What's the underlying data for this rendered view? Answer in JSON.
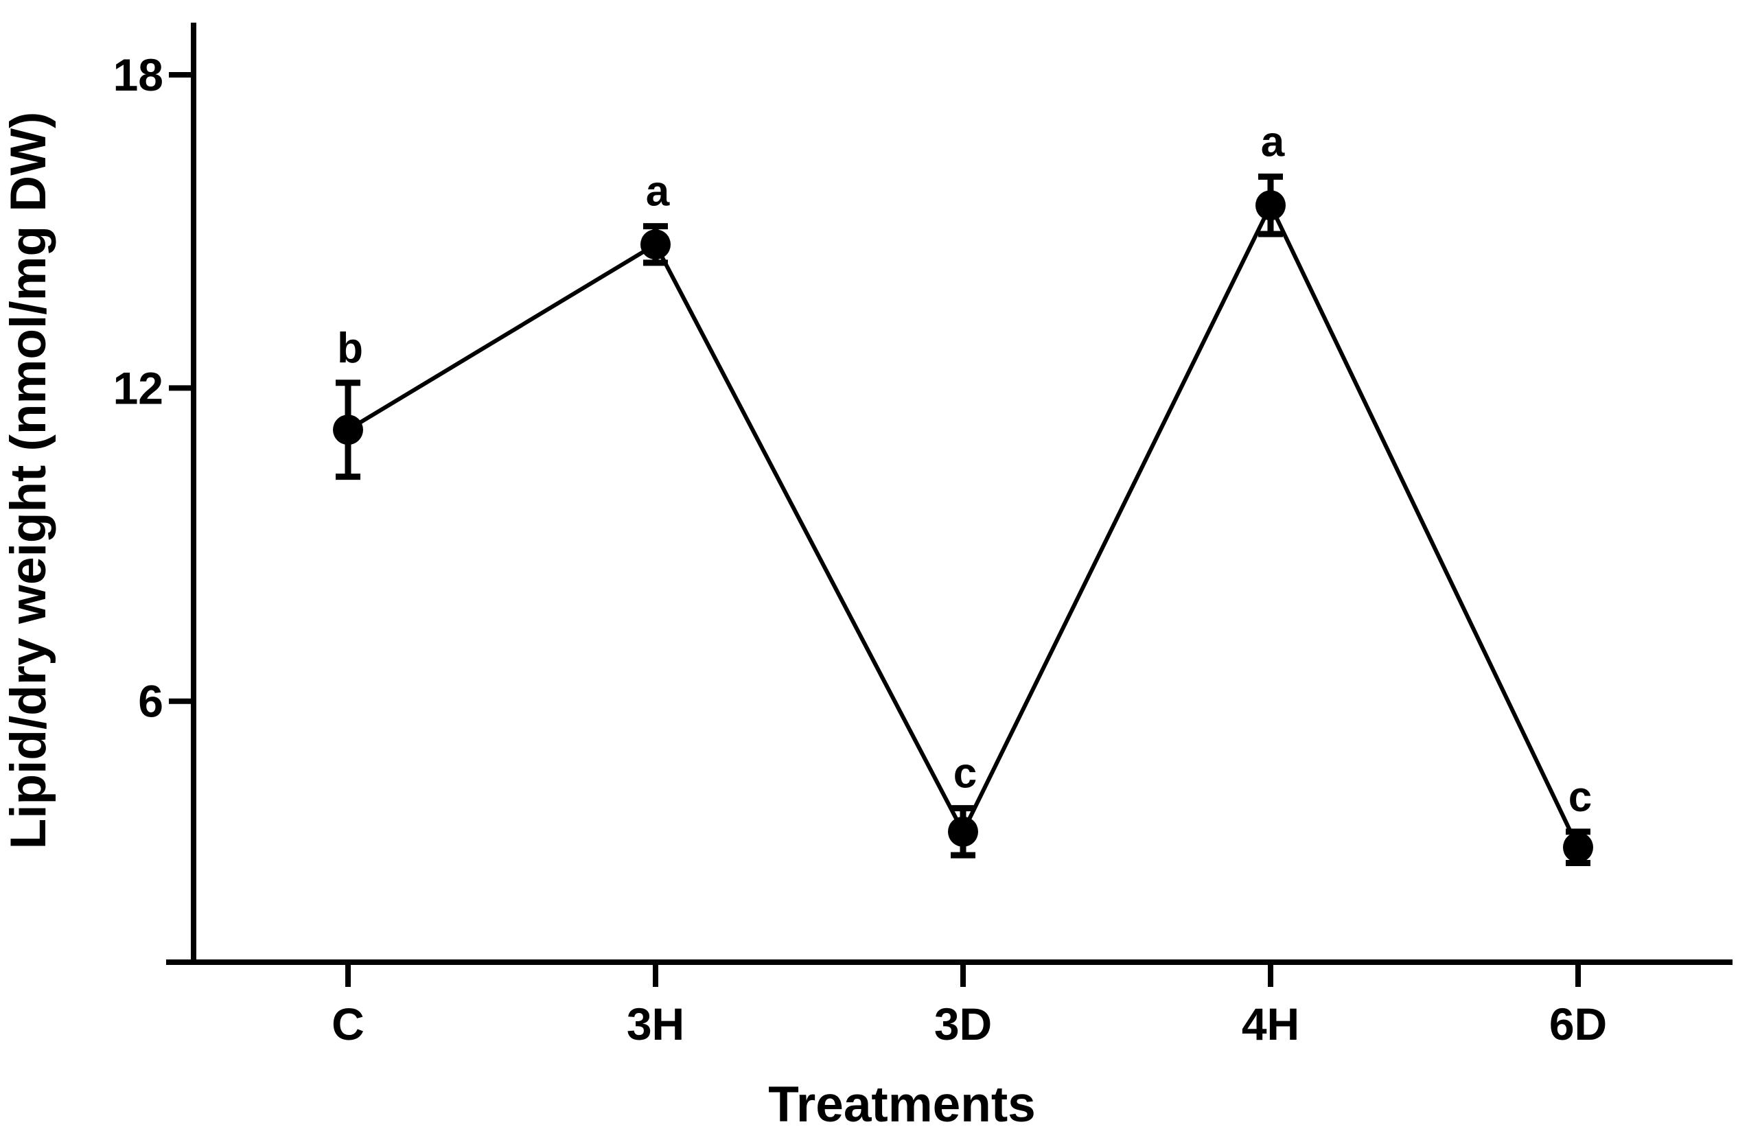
{
  "figure": {
    "background_color": "#ffffff",
    "ink_color": "#000000"
  },
  "chart_data": {
    "type": "line",
    "title": "",
    "xlabel": "Treatments",
    "ylabel": "Lipid/dry weight (nmol/mg DW)",
    "categories": [
      "C",
      "3H",
      "3D",
      "4H",
      "6D"
    ],
    "series": [
      {
        "name": "Lipid/dry weight",
        "values": [
          11.2,
          14.75,
          3.5,
          15.5,
          3.2
        ],
        "errors": [
          0.9,
          0.35,
          0.45,
          0.55,
          0.3
        ],
        "point_labels": [
          "b",
          "a",
          "c",
          "a",
          "c"
        ]
      }
    ],
    "ylim": [
      1,
      19
    ],
    "yticks": [
      18,
      12,
      6
    ],
    "ytick_labels": [
      "18",
      "12",
      "6"
    ],
    "grid": false,
    "legend": "none",
    "marker": "filled-circle",
    "marker_color": "#000000",
    "line_color": "#000000",
    "error_bar_color": "#000000"
  }
}
